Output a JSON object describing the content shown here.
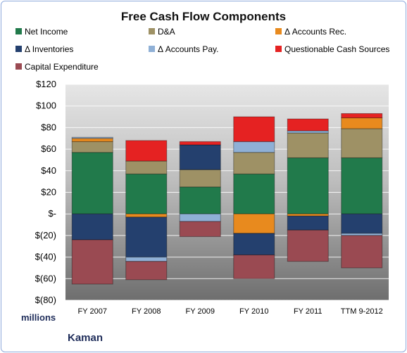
{
  "chart_data": {
    "type": "bar",
    "stacked": true,
    "title": "Free Cash Flow Components",
    "categories": [
      "FY 2007",
      "FY 2008",
      "FY 2009",
      "FY 2010",
      "FY 2011",
      "TTM 9-2012"
    ],
    "series": [
      {
        "name": "Net Income",
        "color": "#217a4b",
        "values": [
          57,
          37,
          25,
          37,
          52,
          52
        ]
      },
      {
        "name": "D&A",
        "color": "#9e9165",
        "values": [
          10,
          12,
          16,
          20,
          23,
          27
        ]
      },
      {
        "name": "Δ Accounts Rec.",
        "color": "#e88a1e",
        "values": [
          3,
          -3,
          0,
          -18,
          -2,
          10
        ]
      },
      {
        "name": "Δ Inventories",
        "color": "#24406e",
        "values": [
          -24,
          -37,
          23,
          -20,
          -13,
          -18
        ]
      },
      {
        "name": "Δ Accounts Pay.",
        "color": "#8fb0d6",
        "values": [
          1,
          -4,
          -7,
          10,
          2,
          -2
        ]
      },
      {
        "name": "Questionable Cash Sources",
        "color": "#e52222",
        "values": [
          0,
          19,
          3,
          23,
          11,
          4
        ]
      },
      {
        "name": "Capital Expenditure",
        "color": "#9a4a52",
        "values": [
          -41,
          -17,
          -14,
          -22,
          -29,
          -30
        ]
      }
    ],
    "ylim": [
      -80,
      120
    ],
    "ytick_values": [
      120,
      100,
      80,
      60,
      40,
      20,
      0,
      -20,
      -40,
      -60,
      -80
    ],
    "ytick_labels": [
      "$120",
      "$100",
      "$80",
      "$60",
      "$40",
      "$20",
      "$-",
      "$(20)",
      "$(40)",
      "$(60)",
      "$(80)"
    ],
    "units_label": "millions",
    "company": "Kaman",
    "grid": true,
    "legend_position": "top"
  }
}
